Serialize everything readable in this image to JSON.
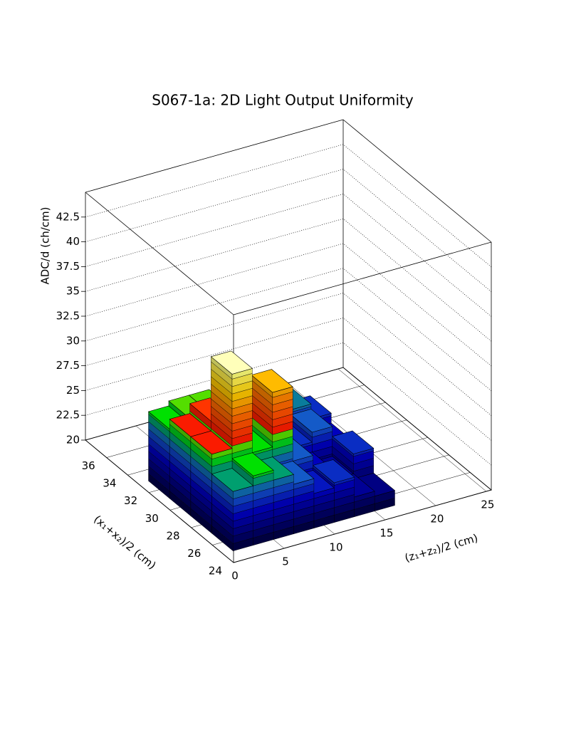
{
  "chart_data": {
    "type": "lego",
    "title": "S067-1a: 2D Light Output Uniformity",
    "xlabel": "(z₁+z₂)/2 (cm)",
    "ylabel": "(x₁+x₂)/2 (cm)",
    "zlabel": "ADC/d (ch/cm)",
    "xlim": [
      0,
      25.5
    ],
    "xticks": [
      0,
      5,
      10,
      15,
      20,
      25
    ],
    "ylim": [
      24,
      38
    ],
    "yticks": [
      24,
      26,
      28,
      30,
      32,
      34,
      36
    ],
    "zlim": [
      20,
      45
    ],
    "zticks": [
      20,
      22.5,
      25,
      27.5,
      30,
      32.5,
      35,
      37.5,
      40,
      42.5
    ],
    "xbins": [
      1,
      3,
      5,
      7,
      9,
      11,
      13,
      15,
      17
    ],
    "ybins": [
      25,
      27,
      29,
      31,
      33
    ],
    "values": [
      [
        26,
        27,
        26,
        25,
        23.5,
        24,
        22,
        21.5
      ],
      [
        28,
        35.5,
        27,
        32.5,
        25,
        23,
        22,
        24
      ],
      [
        28,
        29,
        27,
        26,
        25,
        24,
        25,
        23
      ],
      [
        27,
        27.5,
        27.5,
        26.5,
        24,
        25,
        25.5,
        24
      ]
    ],
    "grid": true
  }
}
